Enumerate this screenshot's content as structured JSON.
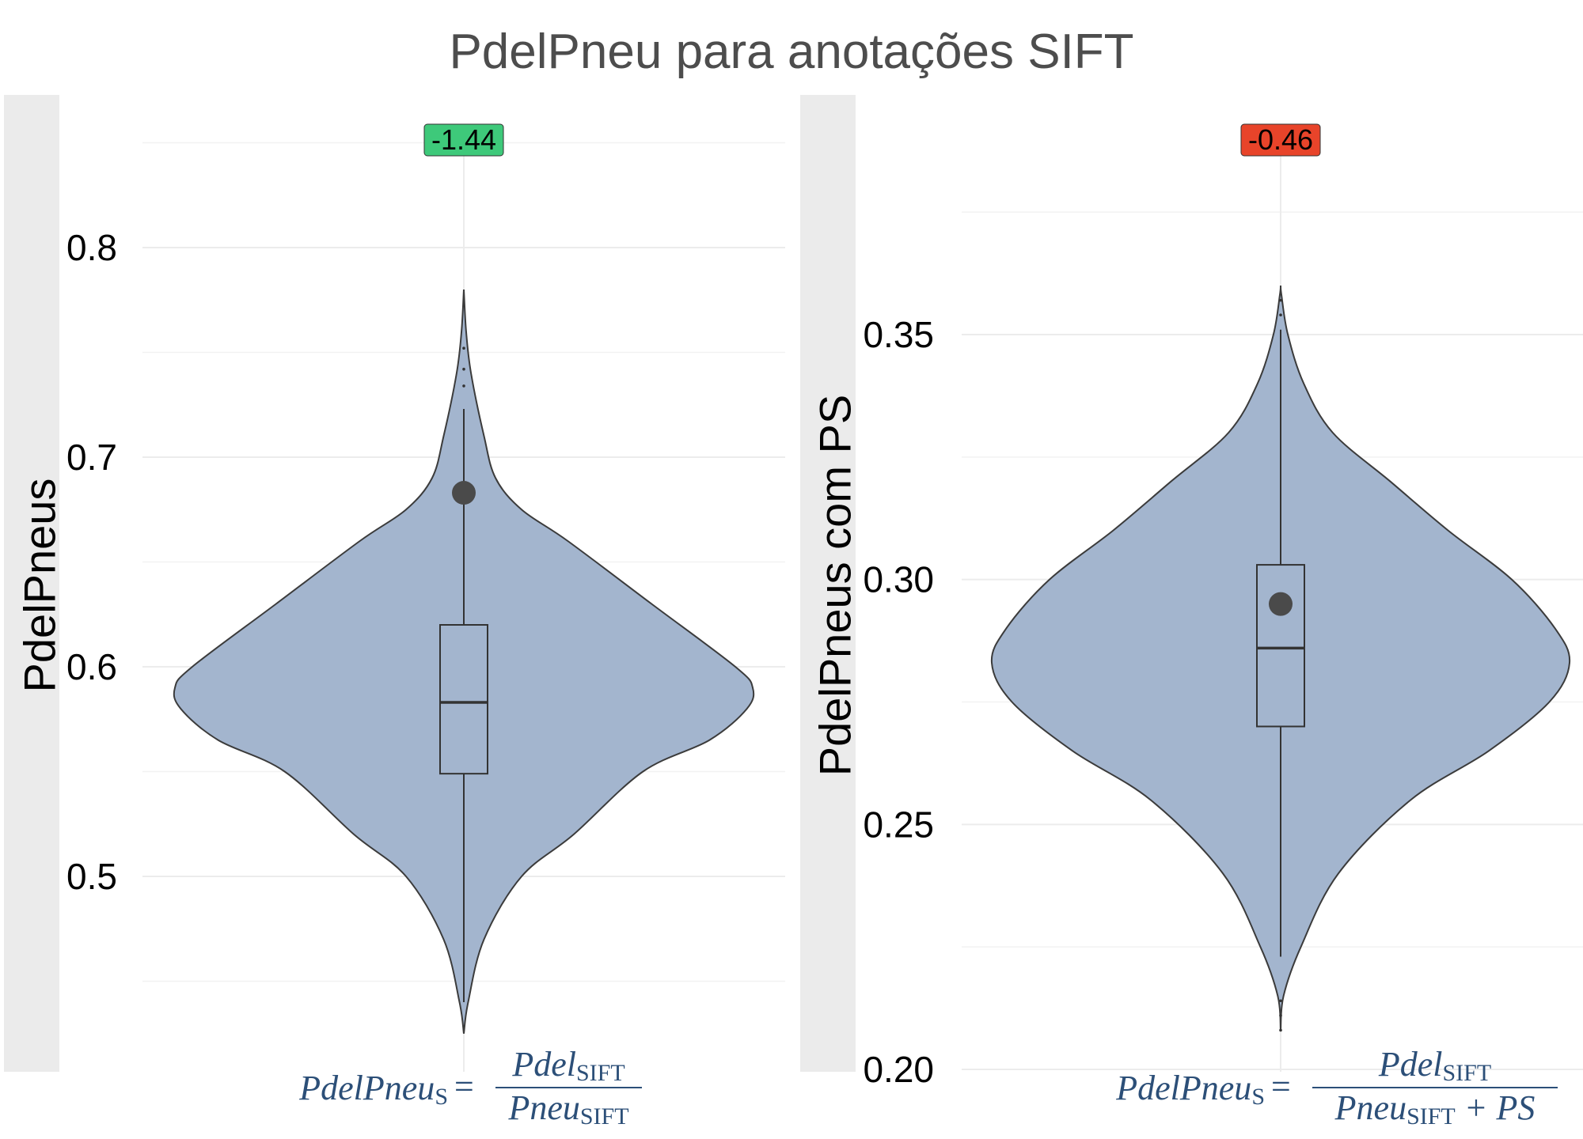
{
  "title": "PdelPneu para anotações SIFT",
  "chart_data": [
    {
      "type": "violin",
      "ylabel": "PdelPneus",
      "y_ticks": [
        "0.5",
        "0.6",
        "0.7",
        "0.8"
      ],
      "ylim": [
        0.42,
        0.86
      ],
      "badge": {
        "text": "-1.44",
        "color": "#3ec97a"
      },
      "violin_color": "#a3b5ce",
      "density_profile": [
        [
          0.425,
          0.0
        ],
        [
          0.44,
          0.015
        ],
        [
          0.47,
          0.07
        ],
        [
          0.5,
          0.2
        ],
        [
          0.52,
          0.38
        ],
        [
          0.55,
          0.62
        ],
        [
          0.565,
          0.85
        ],
        [
          0.58,
          0.98
        ],
        [
          0.59,
          1.0
        ],
        [
          0.6,
          0.94
        ],
        [
          0.63,
          0.65
        ],
        [
          0.66,
          0.36
        ],
        [
          0.675,
          0.2
        ],
        [
          0.69,
          0.11
        ],
        [
          0.71,
          0.07
        ],
        [
          0.74,
          0.025
        ],
        [
          0.76,
          0.008
        ],
        [
          0.78,
          0.0
        ]
      ],
      "box": {
        "q1": 0.549,
        "median": 0.583,
        "q3": 0.62,
        "whisker_low": 0.44,
        "whisker_high": 0.723
      },
      "outliers": [
        0.734,
        0.742,
        0.752
      ],
      "mean_point": 0.683,
      "formula": {
        "lhs": "PdelPneu",
        "lhs_sub": "S",
        "num": "Pdel",
        "num_sub": "SIFT",
        "den": "Pneu",
        "den_sub": "SIFT",
        "den_suffix": ""
      }
    },
    {
      "type": "violin",
      "ylabel": "PdelPneus com PS",
      "y_ticks": [
        "0.20",
        "0.25",
        "0.30",
        "0.35"
      ],
      "ylim": [
        0.2,
        0.375
      ],
      "badge": {
        "text": "-0.46",
        "color": "#e8442a"
      },
      "violin_color": "#a3b5ce",
      "density_profile": [
        [
          0.208,
          0.0
        ],
        [
          0.215,
          0.01
        ],
        [
          0.225,
          0.07
        ],
        [
          0.24,
          0.2
        ],
        [
          0.255,
          0.45
        ],
        [
          0.265,
          0.72
        ],
        [
          0.275,
          0.93
        ],
        [
          0.283,
          1.0
        ],
        [
          0.29,
          0.95
        ],
        [
          0.3,
          0.8
        ],
        [
          0.31,
          0.58
        ],
        [
          0.32,
          0.38
        ],
        [
          0.33,
          0.18
        ],
        [
          0.34,
          0.08
        ],
        [
          0.35,
          0.025
        ],
        [
          0.358,
          0.003
        ],
        [
          0.36,
          0.0
        ]
      ],
      "box": {
        "q1": 0.27,
        "median": 0.286,
        "q3": 0.303,
        "whisker_low": 0.223,
        "whisker_high": 0.351
      },
      "outliers": [
        0.208,
        0.211,
        0.214,
        0.354,
        0.357
      ],
      "mean_point": 0.295,
      "formula": {
        "lhs": "PdelPneu",
        "lhs_sub": "S",
        "num": "Pdel",
        "num_sub": "SIFT",
        "den": "Pneu",
        "den_sub": "SIFT",
        "den_suffix": " + PS"
      }
    }
  ]
}
